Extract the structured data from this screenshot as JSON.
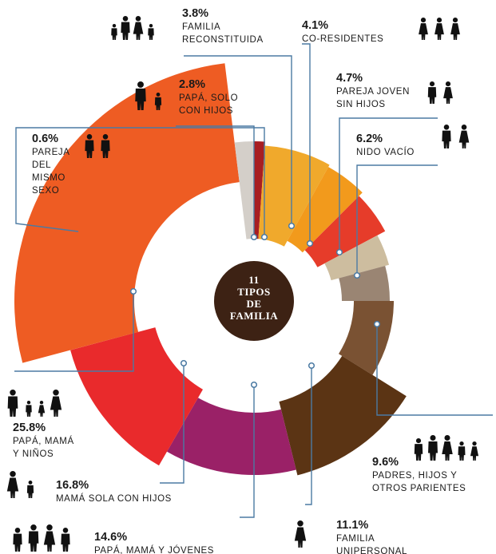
{
  "chart_data": {
    "type": "pie",
    "title": "11 TIPOS DE FAMILIA",
    "slices": [
      {
        "pct": "0.6%",
        "value": 0.6,
        "label": "PAREJA DEL MISMO SEXO",
        "label_lines": [
          "PAREJA",
          "DEL",
          "MISMO",
          "SEXO"
        ],
        "color": "#a81e22",
        "icon": "couple-icon",
        "icon_count": 2
      },
      {
        "pct": "3.8%",
        "value": 3.8,
        "label": "FAMILIA RECONSTITUIDA",
        "label_lines": [
          "FAMILIA",
          "RECONSTITUIDA"
        ],
        "color": "#f0a92c",
        "icon": "blended-family-icon",
        "icon_count": 4
      },
      {
        "pct": "4.1%",
        "value": 4.1,
        "label": "CO-RESIDENTES",
        "label_lines": [
          "CO-RESIDENTES"
        ],
        "color": "#f29a1c",
        "icon": "co-residents-icon",
        "icon_count": 3
      },
      {
        "pct": "4.7%",
        "value": 4.7,
        "label": "PAREJA JOVEN SIN HIJOS",
        "label_lines": [
          "PAREJA JOVEN",
          "SIN HIJOS"
        ],
        "color": "#e63c2a",
        "icon": "young-couple-icon",
        "icon_count": 2
      },
      {
        "pct": "6.2%",
        "value": 6.2,
        "label": "NIDO VACÍO",
        "label_lines": [
          "NIDO VACÍO"
        ],
        "color": "#cdbd9f",
        "icon": "elderly-couple-icon",
        "icon_count": 2
      },
      {
        "pct": "",
        "value": null,
        "label": "",
        "label_lines": [],
        "color": "#9a8573",
        "icon": "",
        "icon_count": 0
      },
      {
        "pct": "9.6%",
        "value": 9.6,
        "label": "PADRES, HIJOS Y OTROS PARIENTES",
        "label_lines": [
          "PADRES, HIJOS Y",
          "OTROS PARIENTES"
        ],
        "color": "#7a5233",
        "icon": "extended-family-icon",
        "icon_count": 5
      },
      {
        "pct": "11.1%",
        "value": 11.1,
        "label": "FAMILIA UNIPERSONAL",
        "label_lines": [
          "FAMILIA",
          "UNIPERSONAL"
        ],
        "color": "#5b3414",
        "icon": "single-person-icon",
        "icon_count": 1
      },
      {
        "pct": "14.6%",
        "value": 14.6,
        "label": "PAPÁ, MAMÁ Y JÓVENES",
        "label_lines": [
          "PAPÁ, MAMÁ Y JÓVENES"
        ],
        "color": "#9a2167",
        "icon": "parents-youth-icon",
        "icon_count": 4
      },
      {
        "pct": "16.8%",
        "value": 16.8,
        "label": "MAMÁ SOLA CON HIJOS",
        "label_lines": [
          "MAMÁ SOLA CON HIJOS"
        ],
        "color": "#e92a2c",
        "icon": "single-mom-icon",
        "icon_count": 2
      },
      {
        "pct": "25.8%",
        "value": 25.8,
        "label": "PAPÁ, MAMÁ Y NIÑOS",
        "label_lines": [
          "PAPÁ, MAMÁ",
          "Y NIÑOS"
        ],
        "color": "#ee5c23",
        "icon": "parents-kids-icon",
        "icon_count": 4
      },
      {
        "pct": "2.8%",
        "value": 2.8,
        "label": "PAPÁ, SOLO CON HIJOS",
        "label_lines": [
          "PAPÁ, SOLO",
          "CON HIJOS"
        ],
        "color": "#d4cfc9",
        "icon": "single-dad-icon",
        "icon_count": 2
      }
    ],
    "center_label": [
      "11",
      "TIPOS",
      "DE",
      "FAMILIA"
    ],
    "center_color": "#3d2214",
    "leader_color": "#4b7aa3",
    "legend": "callouts around chart"
  }
}
